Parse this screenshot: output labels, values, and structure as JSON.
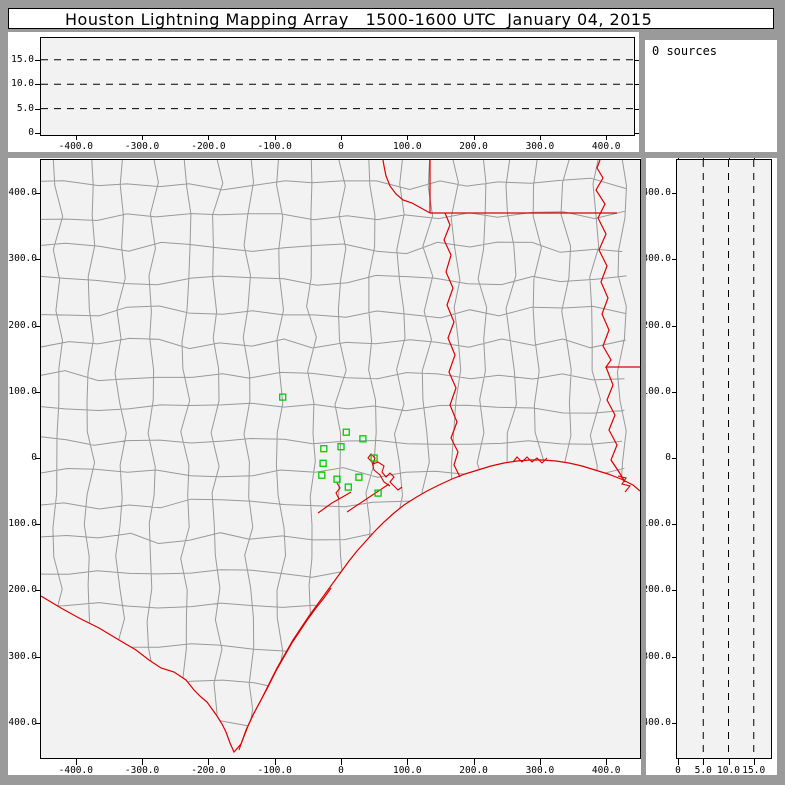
{
  "window": {
    "title": "Houston Lightning Mapping Array   1500-1600 UTC  January 04, 2015",
    "sources_counter": "0 sources"
  },
  "colors": {
    "frame_gray": "#9a9a9a",
    "panel_white": "#ffffff",
    "plot_bg": "#f2f2f2",
    "county_line": "#999999",
    "state_border": "#dd0000",
    "station_green": "#00cc00",
    "axis_black": "#000000"
  },
  "altitude_axis": {
    "units_note_visible": false,
    "dashed_levels": [
      5,
      10,
      15
    ],
    "ticks": [
      {
        "v": 0,
        "label": "0"
      },
      {
        "v": 5,
        "label": "5.0"
      },
      {
        "v": 10,
        "label": "10.0"
      },
      {
        "v": 15,
        "label": "15.0"
      }
    ]
  },
  "map": {
    "x_ticks": [
      {
        "v": -400,
        "label": "-400.0"
      },
      {
        "v": -300,
        "label": "-300.0"
      },
      {
        "v": -200,
        "label": "-200.0"
      },
      {
        "v": -100,
        "label": "-100.0"
      },
      {
        "v": 0,
        "label": "0"
      },
      {
        "v": 100,
        "label": "100.0"
      },
      {
        "v": 200,
        "label": "200.0"
      },
      {
        "v": 300,
        "label": "300.0"
      },
      {
        "v": 400,
        "label": "400.0"
      }
    ],
    "y_ticks": [
      {
        "v": -400,
        "label": "-400.0"
      },
      {
        "v": -300,
        "label": "-300.0"
      },
      {
        "v": -200,
        "label": "-200.0"
      },
      {
        "v": -100,
        "label": "-100.0"
      },
      {
        "v": 0,
        "label": "0"
      },
      {
        "v": 100,
        "label": "100.0"
      },
      {
        "v": 200,
        "label": "200.0"
      },
      {
        "v": 300,
        "label": "300.0"
      },
      {
        "v": 400,
        "label": "400.0"
      }
    ],
    "stations_km": [
      [
        -88,
        92
      ],
      [
        8,
        39
      ],
      [
        0,
        17
      ],
      [
        33,
        29
      ],
      [
        -26,
        14
      ],
      [
        -27,
        -8
      ],
      [
        -29,
        -26
      ],
      [
        50,
        0
      ],
      [
        27,
        -29
      ],
      [
        -6,
        -32
      ],
      [
        11,
        -44
      ],
      [
        56,
        -53
      ]
    ]
  }
}
